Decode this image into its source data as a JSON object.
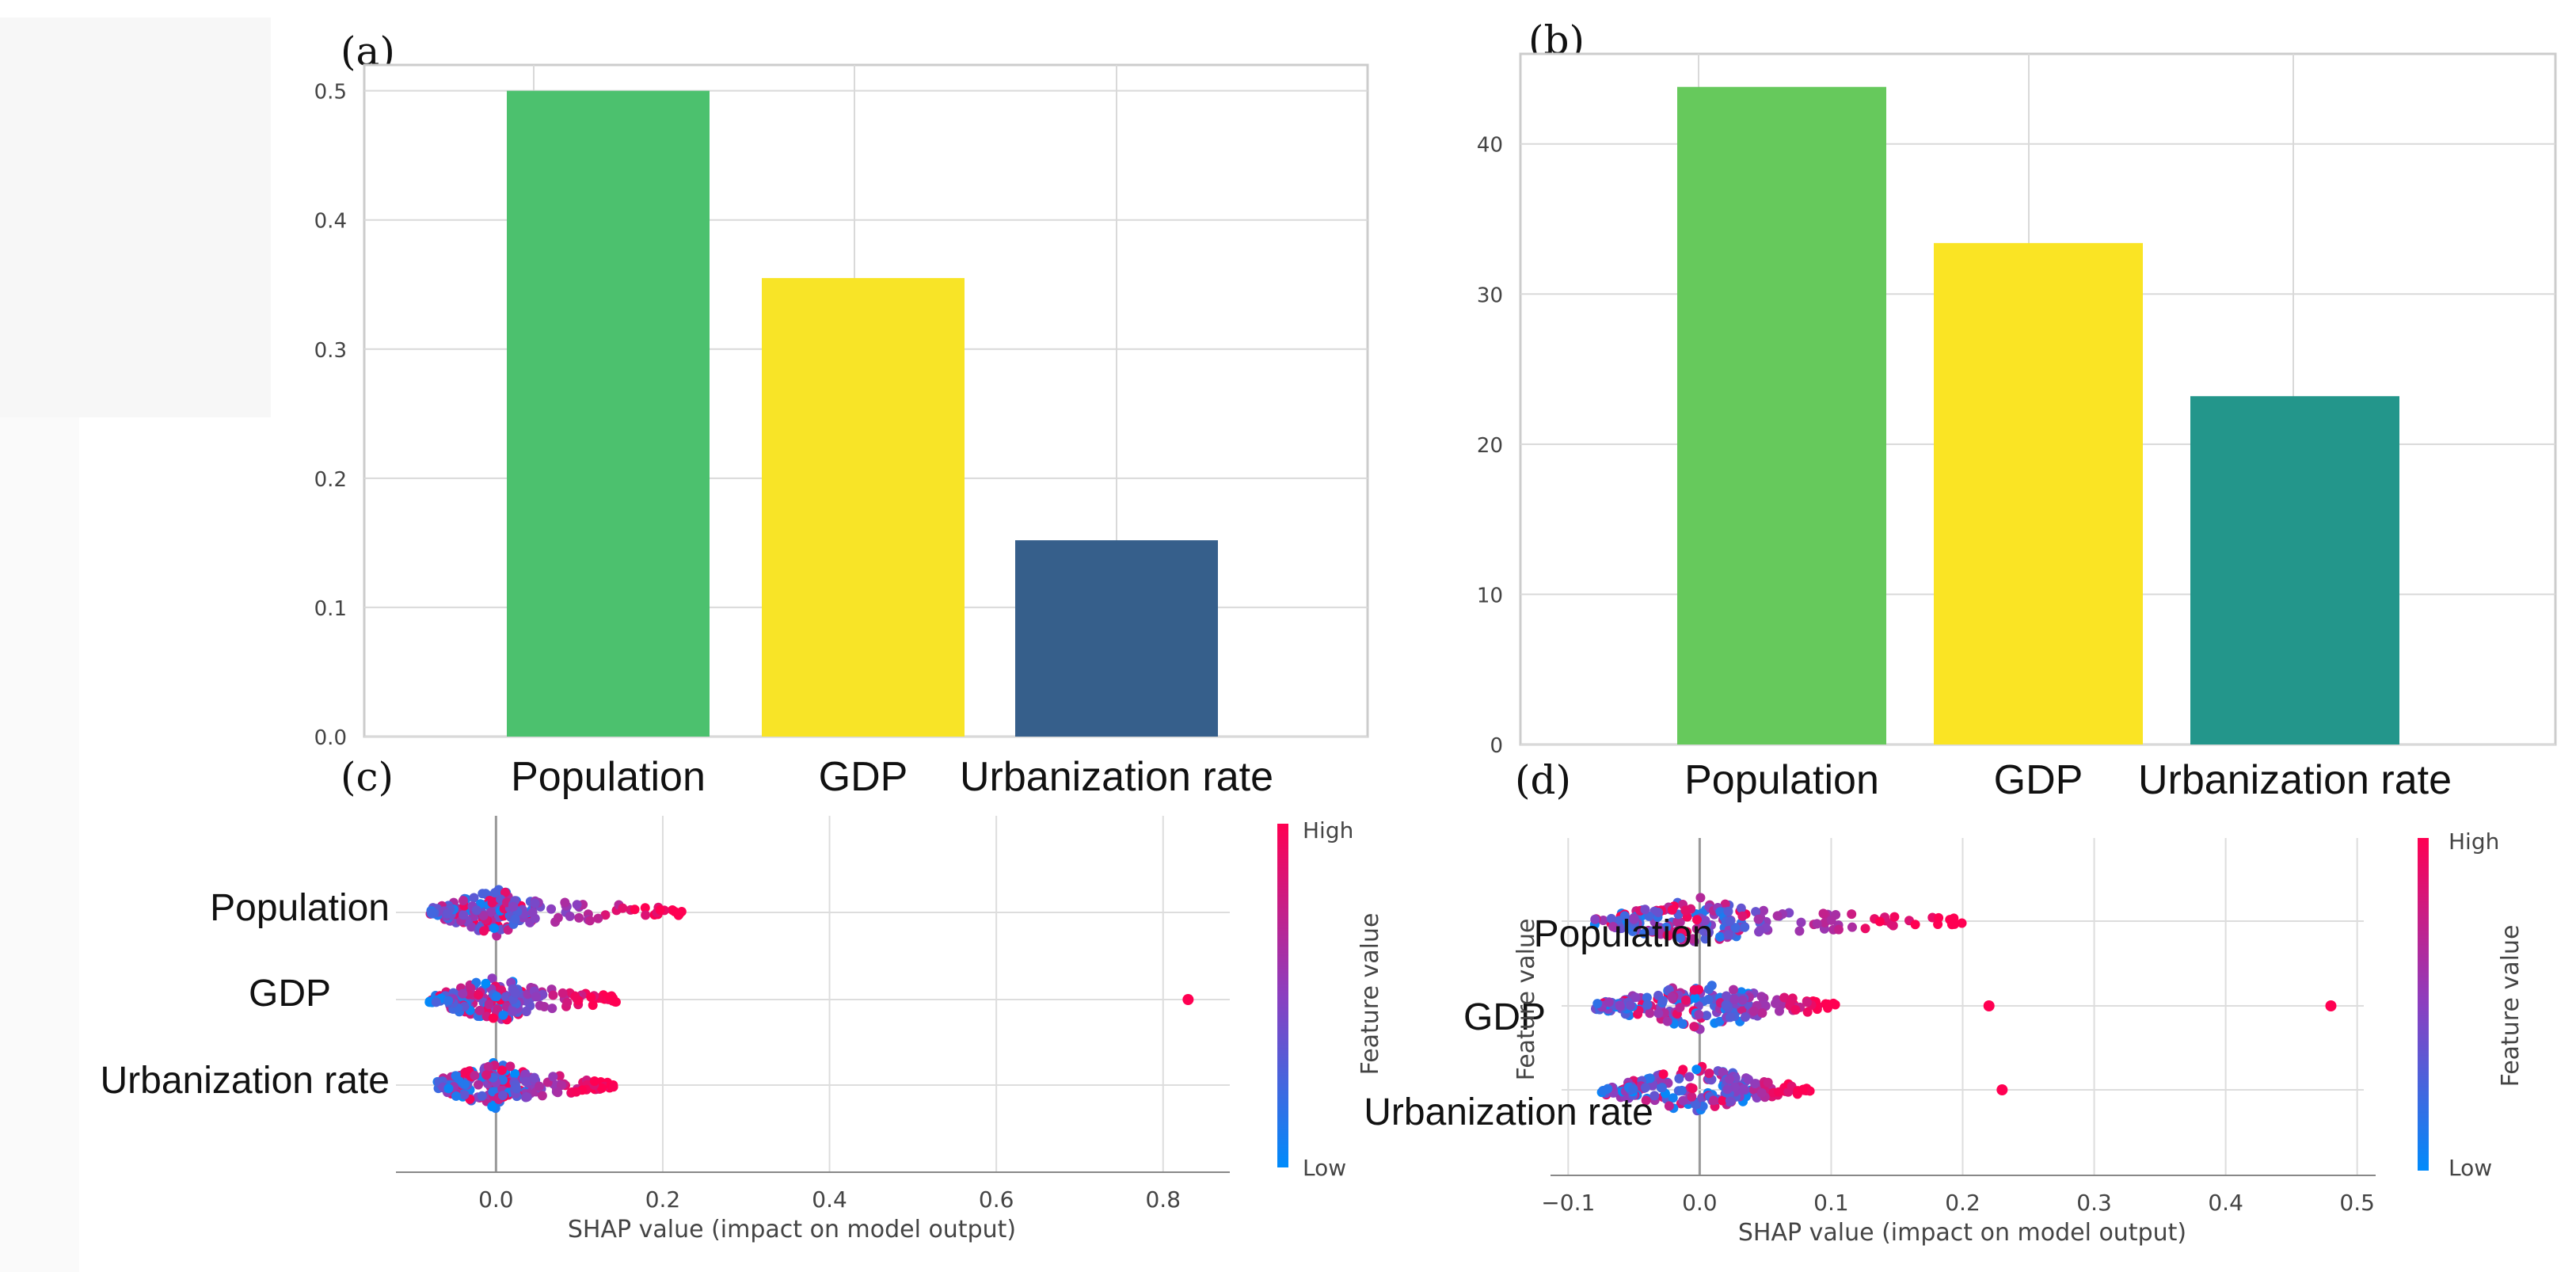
{
  "chart_data": [
    {
      "panel": "(a)",
      "type": "bar",
      "categories": [
        "Population",
        "GDP",
        "Urbanization rate"
      ],
      "values": [
        0.5,
        0.355,
        0.152
      ],
      "colors": [
        "#4cc16e",
        "#f8e427",
        "#365f8b"
      ],
      "ylim": [
        0,
        0.52
      ],
      "yticks": [
        "0.0",
        "0.1",
        "0.2",
        "0.3",
        "0.4",
        "0.5"
      ],
      "grid": true,
      "title": "",
      "xlabel": "",
      "ylabel": ""
    },
    {
      "panel": "(b)",
      "type": "bar",
      "categories": [
        "Population",
        "GDP",
        "Urbanization rate"
      ],
      "values": [
        43.8,
        33.4,
        23.2
      ],
      "colors": [
        "#66c95c",
        "#fae424",
        "#23968b"
      ],
      "ylim": [
        0,
        46
      ],
      "yticks": [
        "0",
        "10",
        "20",
        "30",
        "40"
      ],
      "grid": true,
      "title": "",
      "xlabel": "",
      "ylabel": ""
    },
    {
      "panel": "(c)",
      "type": "scatter",
      "features": [
        "Population",
        "GDP",
        "Urbanization rate"
      ],
      "xlabel": "SHAP value (impact on model output)",
      "xlim": [
        -0.12,
        0.88
      ],
      "xticks": [
        "0.0",
        "0.2",
        "0.4",
        "0.6",
        "0.8"
      ],
      "colorbar": {
        "label": "Feature value",
        "high": "High",
        "low": "Low",
        "high_color": "#ff0052",
        "low_color": "#008bfb"
      },
      "outliers": [
        {
          "feature": "GDP",
          "x": 0.83
        }
      ],
      "ranges": [
        {
          "feature": "Population",
          "min": -0.08,
          "max": 0.23
        },
        {
          "feature": "GDP",
          "min": -0.08,
          "max": 0.15
        },
        {
          "feature": "Urbanization rate",
          "min": -0.07,
          "max": 0.145
        }
      ]
    },
    {
      "panel": "(d)",
      "type": "scatter",
      "features": [
        "Population",
        "GDP",
        "Urbanization rate"
      ],
      "xlabel": "SHAP value (impact on model output)",
      "xlim": [
        -0.105,
        0.505
      ],
      "xticks": [
        "−0.1",
        "0.0",
        "0.1",
        "0.2",
        "0.3",
        "0.4",
        "0.5"
      ],
      "colorbar": {
        "label": "Feature value",
        "high": "High",
        "low": "Low",
        "high_color": "#ff0052",
        "low_color": "#008bfb"
      },
      "outliers": [
        {
          "feature": "GDP",
          "x": 0.22
        },
        {
          "feature": "GDP",
          "x": 0.48
        },
        {
          "feature": "Urbanization rate",
          "x": 0.23
        }
      ],
      "ranges": [
        {
          "feature": "Population",
          "min": -0.05,
          "max": 0.2
        },
        {
          "feature": "GDP",
          "min": -0.08,
          "max": 0.105
        },
        {
          "feature": "Urbanization rate",
          "min": -0.075,
          "max": 0.085
        }
      ]
    }
  ]
}
